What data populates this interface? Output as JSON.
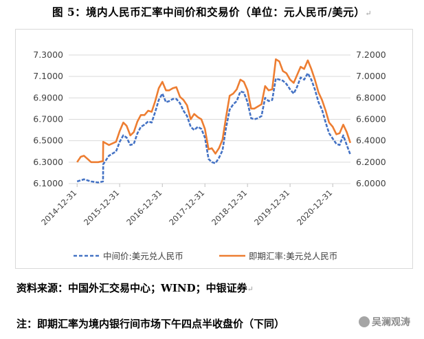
{
  "figure": {
    "title": "图 5：境内人民币汇率中间价和交易价（单位：元人民币/美元）",
    "source": "资料来源：中国外汇交易中心；WIND；中银证券",
    "note": "注：即期汇率为境内银行间市场下午四点半收盘价（下同）",
    "watermark": "吴澜观涛"
  },
  "chart_data": {
    "type": "line",
    "xlabel": "",
    "ylabel": "",
    "x_ticks": [
      "2014-12-31",
      "2015-12-31",
      "2016-12-31",
      "2017-12-31",
      "2018-12-31",
      "2019-12-31",
      "2020-12-31"
    ],
    "left_axis": {
      "ylim": [
        6.1,
        7.3
      ],
      "ticks": [
        "6.1000",
        "6.3000",
        "6.5000",
        "6.7000",
        "6.9000",
        "7.1000",
        "7.3000"
      ]
    },
    "right_axis": {
      "ylim": [
        6.0,
        7.2
      ],
      "ticks": [
        "6.0000",
        "6.2000",
        "6.4000",
        "6.6000",
        "6.8000",
        "7.0000",
        "7.2000"
      ]
    },
    "grid": "horizontal",
    "legend_position": "bottom",
    "series": [
      {
        "name": "中间价:美元兑人民币",
        "axis": "left",
        "color": "#4472C4",
        "style": "dashed",
        "points": [
          [
            "2014-12-31",
            6.12
          ],
          [
            "2015-02-28",
            6.14
          ],
          [
            "2015-04-30",
            6.12
          ],
          [
            "2015-06-30",
            6.11
          ],
          [
            "2015-08-10",
            6.12
          ],
          [
            "2015-08-12",
            6.28
          ],
          [
            "2015-09-30",
            6.36
          ],
          [
            "2015-11-30",
            6.4
          ],
          [
            "2015-12-31",
            6.49
          ],
          [
            "2016-01-31",
            6.55
          ],
          [
            "2016-02-28",
            6.53
          ],
          [
            "2016-03-31",
            6.46
          ],
          [
            "2016-04-30",
            6.47
          ],
          [
            "2016-05-31",
            6.57
          ],
          [
            "2016-06-30",
            6.63
          ],
          [
            "2016-07-31",
            6.65
          ],
          [
            "2016-08-31",
            6.68
          ],
          [
            "2016-09-30",
            6.67
          ],
          [
            "2016-10-31",
            6.77
          ],
          [
            "2016-11-30",
            6.88
          ],
          [
            "2016-12-31",
            6.94
          ],
          [
            "2017-01-31",
            6.86
          ],
          [
            "2017-02-28",
            6.87
          ],
          [
            "2017-03-31",
            6.89
          ],
          [
            "2017-04-30",
            6.89
          ],
          [
            "2017-05-31",
            6.85
          ],
          [
            "2017-06-30",
            6.78
          ],
          [
            "2017-07-31",
            6.73
          ],
          [
            "2017-08-31",
            6.63
          ],
          [
            "2017-09-30",
            6.6
          ],
          [
            "2017-10-31",
            6.63
          ],
          [
            "2017-11-30",
            6.61
          ],
          [
            "2017-12-31",
            6.53
          ],
          [
            "2018-01-31",
            6.33
          ],
          [
            "2018-02-28",
            6.3
          ],
          [
            "2018-03-31",
            6.29
          ],
          [
            "2018-04-30",
            6.34
          ],
          [
            "2018-05-31",
            6.41
          ],
          [
            "2018-06-30",
            6.62
          ],
          [
            "2018-07-31",
            6.79
          ],
          [
            "2018-08-31",
            6.84
          ],
          [
            "2018-09-30",
            6.87
          ],
          [
            "2018-10-31",
            6.96
          ],
          [
            "2018-11-30",
            6.95
          ],
          [
            "2018-12-31",
            6.86
          ],
          [
            "2019-01-31",
            6.71
          ],
          [
            "2019-02-28",
            6.7
          ],
          [
            "2019-03-31",
            6.71
          ],
          [
            "2019-04-30",
            6.73
          ],
          [
            "2019-05-31",
            6.9
          ],
          [
            "2019-06-30",
            6.87
          ],
          [
            "2019-07-31",
            6.88
          ],
          [
            "2019-08-31",
            7.08
          ],
          [
            "2019-09-30",
            7.07
          ],
          [
            "2019-10-31",
            7.06
          ],
          [
            "2019-11-30",
            7.03
          ],
          [
            "2019-12-31",
            6.98
          ],
          [
            "2020-01-31",
            6.94
          ],
          [
            "2020-02-28",
            7.0
          ],
          [
            "2020-03-31",
            7.09
          ],
          [
            "2020-04-30",
            7.07
          ],
          [
            "2020-05-31",
            7.13
          ],
          [
            "2020-06-30",
            7.07
          ],
          [
            "2020-07-31",
            6.98
          ],
          [
            "2020-08-31",
            6.86
          ],
          [
            "2020-09-30",
            6.79
          ],
          [
            "2020-10-31",
            6.67
          ],
          [
            "2020-11-30",
            6.57
          ],
          [
            "2020-12-31",
            6.52
          ],
          [
            "2021-01-31",
            6.47
          ],
          [
            "2021-02-28",
            6.46
          ],
          [
            "2021-03-31",
            6.55
          ],
          [
            "2021-04-30",
            6.46
          ],
          [
            "2021-05-31",
            6.37
          ]
        ]
      },
      {
        "name": "即期汇率:美元兑人民币",
        "axis": "right",
        "color": "#ED7D31",
        "style": "solid",
        "points": [
          [
            "2014-12-31",
            6.2
          ],
          [
            "2015-01-31",
            6.25
          ],
          [
            "2015-02-28",
            6.26
          ],
          [
            "2015-04-30",
            6.2
          ],
          [
            "2015-06-30",
            6.2
          ],
          [
            "2015-08-10",
            6.21
          ],
          [
            "2015-08-12",
            6.39
          ],
          [
            "2015-09-30",
            6.36
          ],
          [
            "2015-11-30",
            6.39
          ],
          [
            "2015-12-31",
            6.49
          ],
          [
            "2016-01-31",
            6.57
          ],
          [
            "2016-02-28",
            6.54
          ],
          [
            "2016-03-31",
            6.45
          ],
          [
            "2016-04-30",
            6.48
          ],
          [
            "2016-05-31",
            6.58
          ],
          [
            "2016-06-30",
            6.64
          ],
          [
            "2016-07-31",
            6.64
          ],
          [
            "2016-08-31",
            6.68
          ],
          [
            "2016-09-30",
            6.67
          ],
          [
            "2016-10-31",
            6.77
          ],
          [
            "2016-11-30",
            6.89
          ],
          [
            "2016-12-31",
            6.95
          ],
          [
            "2017-01-31",
            6.87
          ],
          [
            "2017-02-28",
            6.87
          ],
          [
            "2017-03-31",
            6.89
          ],
          [
            "2017-04-30",
            6.9
          ],
          [
            "2017-05-31",
            6.81
          ],
          [
            "2017-06-30",
            6.78
          ],
          [
            "2017-07-31",
            6.73
          ],
          [
            "2017-08-31",
            6.6
          ],
          [
            "2017-09-30",
            6.65
          ],
          [
            "2017-10-31",
            6.62
          ],
          [
            "2017-11-30",
            6.6
          ],
          [
            "2017-12-31",
            6.51
          ],
          [
            "2018-01-31",
            6.32
          ],
          [
            "2018-02-28",
            6.33
          ],
          [
            "2018-03-31",
            6.28
          ],
          [
            "2018-04-30",
            6.33
          ],
          [
            "2018-05-31",
            6.41
          ],
          [
            "2018-06-30",
            6.62
          ],
          [
            "2018-07-31",
            6.82
          ],
          [
            "2018-08-31",
            6.84
          ],
          [
            "2018-09-30",
            6.88
          ],
          [
            "2018-10-31",
            6.97
          ],
          [
            "2018-11-30",
            6.95
          ],
          [
            "2018-12-31",
            6.87
          ],
          [
            "2019-01-31",
            6.7
          ],
          [
            "2019-02-28",
            6.7
          ],
          [
            "2019-03-31",
            6.72
          ],
          [
            "2019-04-30",
            6.74
          ],
          [
            "2019-05-31",
            6.91
          ],
          [
            "2019-06-30",
            6.87
          ],
          [
            "2019-07-31",
            6.88
          ],
          [
            "2019-08-31",
            7.16
          ],
          [
            "2019-09-30",
            7.14
          ],
          [
            "2019-10-31",
            7.05
          ],
          [
            "2019-11-30",
            7.03
          ],
          [
            "2019-12-31",
            6.97
          ],
          [
            "2020-01-31",
            6.94
          ],
          [
            "2020-02-28",
            7.01
          ],
          [
            "2020-03-31",
            7.09
          ],
          [
            "2020-04-30",
            7.07
          ],
          [
            "2020-05-31",
            7.15
          ],
          [
            "2020-06-30",
            7.07
          ],
          [
            "2020-07-31",
            6.97
          ],
          [
            "2020-08-31",
            6.85
          ],
          [
            "2020-09-30",
            6.78
          ],
          [
            "2020-10-31",
            6.68
          ],
          [
            "2020-11-30",
            6.57
          ],
          [
            "2020-12-31",
            6.53
          ],
          [
            "2021-01-31",
            6.46
          ],
          [
            "2021-02-28",
            6.47
          ],
          [
            "2021-03-31",
            6.55
          ],
          [
            "2021-04-30",
            6.48
          ],
          [
            "2021-05-31",
            6.38
          ]
        ]
      }
    ]
  }
}
